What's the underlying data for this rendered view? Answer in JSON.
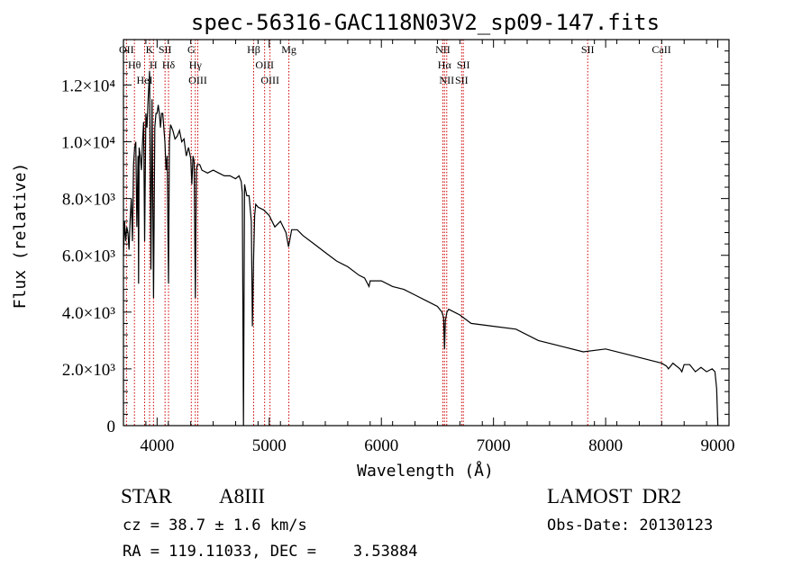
{
  "chart_data": {
    "type": "line",
    "title": "spec-56316-GAC118N03V2_sp09-147.fits",
    "xlabel": "Wavelength (Å)",
    "ylabel": "Flux (relative)",
    "xlim": [
      3700,
      9100
    ],
    "ylim": [
      0,
      13600
    ],
    "x_ticks": [
      4000,
      5000,
      6000,
      7000,
      8000,
      9000
    ],
    "x_tick_labels": [
      "4000",
      "5000",
      "6000",
      "7000",
      "8000",
      "9000"
    ],
    "y_ticks": [
      {
        "value": 0,
        "label": "0"
      },
      {
        "value": 2000,
        "label": "2.0×10³"
      },
      {
        "value": 4000,
        "label": "4.0×10³"
      },
      {
        "value": 6000,
        "label": "6.0×10³"
      },
      {
        "value": 8000,
        "label": "8.0×10³"
      },
      {
        "value": 10000,
        "label": "1.0×10⁴"
      },
      {
        "value": 12000,
        "label": "1.2×10⁴"
      }
    ],
    "grid": false,
    "line_color": "#000000",
    "marker_color": "#cc0000",
    "series": [
      {
        "x": [
          3700,
          3710,
          3720,
          3730,
          3740,
          3750,
          3760,
          3770,
          3780,
          3790,
          3800,
          3810,
          3820,
          3830,
          3835,
          3840,
          3850,
          3860,
          3870,
          3880,
          3889,
          3900,
          3910,
          3920,
          3933,
          3945,
          3955,
          3968,
          3980,
          3990,
          4000,
          4010,
          4020,
          4030,
          4040,
          4050,
          4060,
          4070,
          4080,
          4090,
          4102,
          4110,
          4120,
          4140,
          4160,
          4180,
          4200,
          4220,
          4240,
          4260,
          4280,
          4300,
          4310,
          4320,
          4330,
          4341,
          4350,
          4360,
          4380,
          4400,
          4450,
          4500,
          4550,
          4600,
          4650,
          4700,
          4730,
          4750,
          4760,
          4770,
          4780,
          4790,
          4800,
          4820,
          4840,
          4850,
          4861,
          4870,
          4880,
          4900,
          4950,
          5000,
          5050,
          5100,
          5150,
          5172,
          5200,
          5250,
          5300,
          5400,
          5500,
          5600,
          5700,
          5800,
          5850,
          5890,
          5900,
          6000,
          6100,
          6200,
          6300,
          6400,
          6500,
          6540,
          6555,
          6563,
          6570,
          6585,
          6600,
          6700,
          6800,
          7000,
          7200,
          7400,
          7600,
          7800,
          8000,
          8200,
          8400,
          8500,
          8542,
          8560,
          8600,
          8662,
          8680,
          8700,
          8750,
          8800,
          8850,
          8900,
          8950,
          8975,
          8990,
          9000
        ],
        "y": [
          6000,
          7200,
          6500,
          7000,
          6800,
          6200,
          7300,
          8000,
          6500,
          9200,
          9800,
          10000,
          7000,
          9500,
          5000,
          9800,
          9500,
          9000,
          10000,
          10700,
          6500,
          11000,
          10500,
          11500,
          12500,
          5500,
          11500,
          4500,
          10500,
          11000,
          11000,
          11300,
          11000,
          10500,
          11000,
          11000,
          10500,
          10000,
          9000,
          9500,
          5000,
          10000,
          10600,
          10400,
          10100,
          10200,
          10400,
          10000,
          10100,
          9500,
          9800,
          9400,
          8500,
          9500,
          9300,
          4500,
          9000,
          9200,
          9200,
          9000,
          8900,
          9000,
          8900,
          8800,
          8800,
          8700,
          8800,
          8600,
          8200,
          0,
          8500,
          8300,
          8100,
          8100,
          7200,
          3500,
          6000,
          7400,
          7800,
          7700,
          7600,
          7400,
          7000,
          7200,
          6800,
          6300,
          6900,
          6900,
          6700,
          6400,
          6100,
          5800,
          5600,
          5300,
          5200,
          4900,
          5100,
          5100,
          4900,
          4800,
          4600,
          4400,
          4200,
          4000,
          3800,
          2700,
          3700,
          4000,
          4100,
          3900,
          3600,
          3500,
          3400,
          3000,
          2800,
          2600,
          2700,
          2500,
          2300,
          2200,
          2100,
          2000,
          2200,
          2000,
          1900,
          2150,
          2150,
          1900,
          2050,
          1900,
          2000,
          1900,
          1300,
          0
        ]
      }
    ],
    "line_markers": [
      {
        "wavelength": 3727,
        "label": "OII"
      },
      {
        "wavelength": 3798,
        "label": "Hθ"
      },
      {
        "wavelength": 3889,
        "label": "HeI"
      },
      {
        "wavelength": 3933,
        "label": "K"
      },
      {
        "wavelength": 3968,
        "label": "H"
      },
      {
        "wavelength": 4071,
        "label": "SII"
      },
      {
        "wavelength": 4102,
        "label": "Hδ"
      },
      {
        "wavelength": 4305,
        "label": "G"
      },
      {
        "wavelength": 4341,
        "label": "Hγ"
      },
      {
        "wavelength": 4363,
        "label": "OIII"
      },
      {
        "wavelength": 4861,
        "label": "Hβ"
      },
      {
        "wavelength": 4959,
        "label": "OIII"
      },
      {
        "wavelength": 5007,
        "label": "OIII"
      },
      {
        "wavelength": 5175,
        "label": "Mg"
      },
      {
        "wavelength": 6548,
        "label": "NII"
      },
      {
        "wavelength": 6563,
        "label": "Hα"
      },
      {
        "wavelength": 6583,
        "label": "NII"
      },
      {
        "wavelength": 6716,
        "label": "SII"
      },
      {
        "wavelength": 6731,
        "label": "SII"
      },
      {
        "wavelength": 7840,
        "label": "SII"
      },
      {
        "wavelength": 8498,
        "label": "CaII"
      }
    ]
  },
  "info": {
    "class_label": "STAR",
    "subclass": "A8III",
    "survey": "LAMOST  DR2",
    "redshift": "cz = 38.7 ± 1.6 km/s",
    "obs_date": "Obs-Date: 20130123",
    "coords": "RA = 119.11033, DEC =    3.53884"
  }
}
